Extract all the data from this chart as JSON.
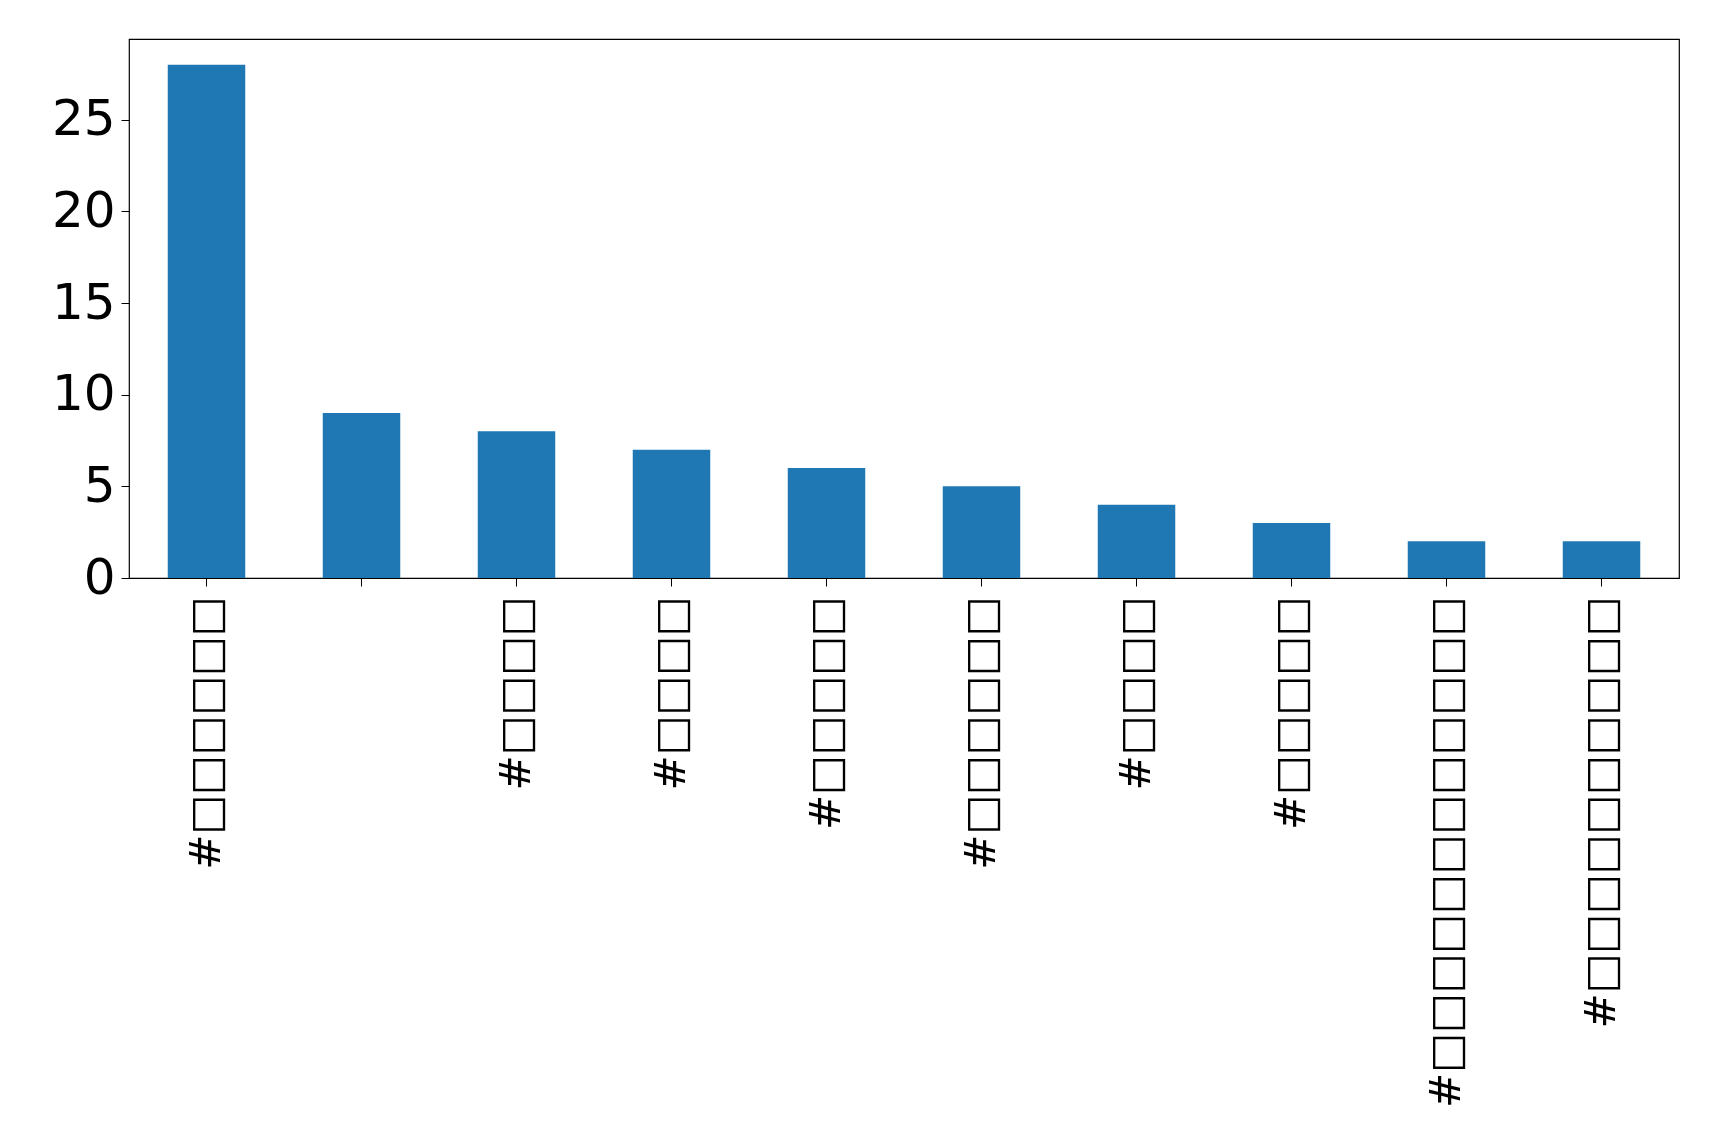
{
  "chart_data": {
    "type": "bar",
    "categories": [
      "#□□□□□□",
      null,
      "#□□□□",
      "#□□□□",
      "#□□□□□",
      "#□□□□□□",
      "#□□□□",
      "#□□□□□",
      "#□□□□□□□□□□□□",
      "#□□□□□□□□□□"
    ],
    "values": [
      28,
      9,
      8,
      7,
      6,
      5,
      4,
      3,
      2,
      2
    ],
    "color": "#1f77b4",
    "ylim": [
      0,
      29.4
    ],
    "yticks": [
      0,
      5,
      10,
      15,
      20,
      25
    ],
    "grid": false
  }
}
